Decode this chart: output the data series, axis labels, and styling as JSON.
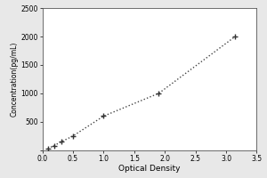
{
  "x_data": [
    0.09,
    0.19,
    0.31,
    0.5,
    1.0,
    1.9,
    3.15
  ],
  "y_data": [
    30,
    80,
    150,
    250,
    600,
    1000,
    2000
  ],
  "xlabel": "Optical Density",
  "ylabel": "Concentration(pg/mL)",
  "xlim": [
    0,
    3.5
  ],
  "ylim": [
    0,
    2500
  ],
  "xticks": [
    0,
    0.5,
    1.0,
    1.5,
    2.0,
    2.5,
    3.0,
    3.5
  ],
  "yticks": [
    0,
    500,
    1000,
    1500,
    2000,
    2500
  ],
  "marker_color": "#333333",
  "line_color": "#444444",
  "outer_background": "#e8e8e8",
  "plot_bg": "#ffffff",
  "fig_width": 3.0,
  "fig_height": 2.0,
  "dpi": 100
}
